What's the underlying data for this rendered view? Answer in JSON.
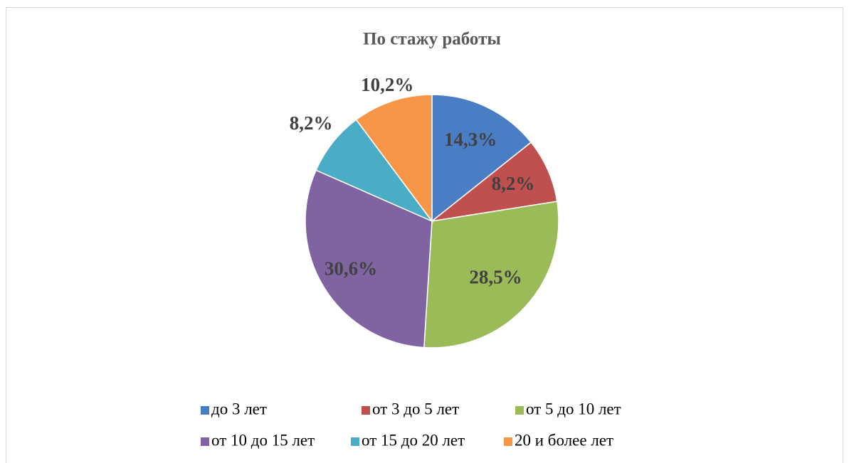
{
  "chart_data": {
    "type": "pie",
    "title": "По стажу работы",
    "categories": [
      "до 3 лет",
      "от 3 до 5 лет",
      "от 5 до 10 лет",
      "от 10 до 15 лет",
      "от 15 до 20 лет",
      "20 и более лет"
    ],
    "values": [
      14.3,
      8.2,
      28.5,
      30.6,
      8.2,
      10.2
    ],
    "value_labels": [
      "14,3%",
      "8,2%",
      "28,5%",
      "30,6%",
      "8,2%",
      "10,2%"
    ],
    "colors": [
      "#4a7ec4",
      "#c0504d",
      "#9bbb59",
      "#8064a2",
      "#4bacc6",
      "#f79646"
    ],
    "legend": "bottom"
  }
}
